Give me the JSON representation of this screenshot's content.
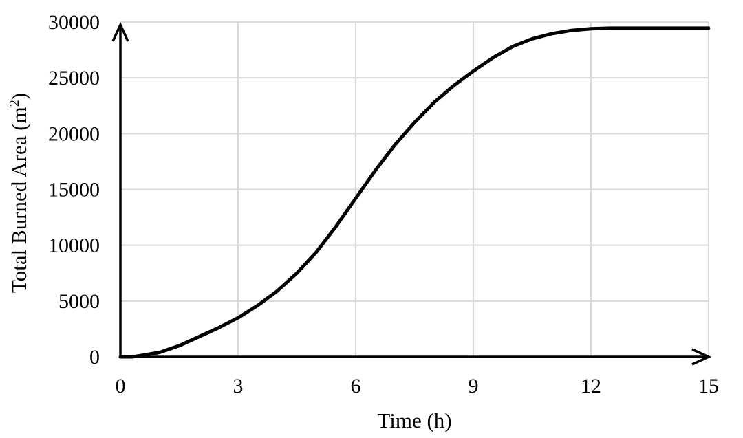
{
  "chart_data": {
    "type": "line",
    "title": "",
    "xlabel": "Time (h)",
    "ylabel_main": "Total Burned Area (m",
    "ylabel_sup": "2",
    "ylabel_close": ")",
    "xlim": [
      0,
      15
    ],
    "ylim": [
      0,
      30000
    ],
    "x_ticks": [
      0,
      3,
      6,
      9,
      12,
      15
    ],
    "y_ticks": [
      0,
      5000,
      10000,
      15000,
      20000,
      25000,
      30000
    ],
    "x_tick_labels": [
      "0",
      "3",
      "6",
      "9",
      "12",
      "15"
    ],
    "y_tick_labels": [
      "0",
      "5000",
      "10000",
      "15000",
      "20000",
      "25000",
      "30000"
    ],
    "grid": true,
    "legend": "none",
    "series": [
      {
        "color": "#000000",
        "x": [
          0,
          0.3,
          0.5,
          1,
          1.5,
          2,
          2.5,
          3,
          3.5,
          4,
          4.5,
          5,
          5.5,
          6,
          6.5,
          7,
          7.5,
          8,
          8.5,
          9,
          9.5,
          10,
          10.5,
          11,
          11.5,
          12,
          12.5,
          13,
          13.5,
          14,
          14.5,
          15
        ],
        "y": [
          0,
          0,
          100,
          400,
          1000,
          1800,
          2600,
          3500,
          4600,
          5900,
          7500,
          9400,
          11700,
          14200,
          16700,
          19000,
          21000,
          22800,
          24300,
          25600,
          26800,
          27800,
          28500,
          28950,
          29250,
          29400,
          29450,
          29450,
          29450,
          29450,
          29450,
          29450
        ]
      }
    ]
  }
}
